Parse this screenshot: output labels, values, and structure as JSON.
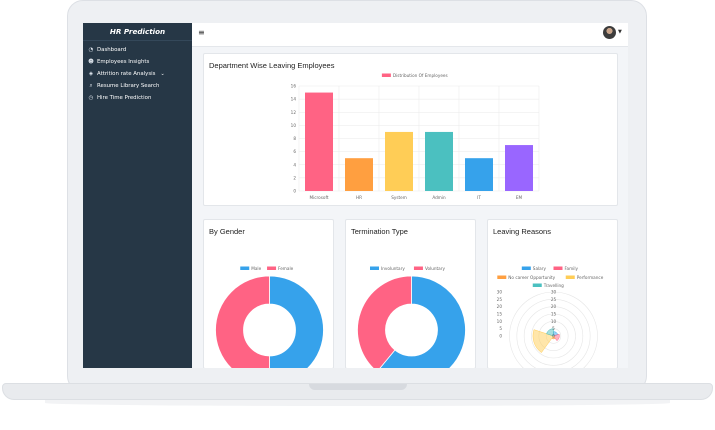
{
  "app": {
    "brand": "HR Prediction"
  },
  "sidebar": {
    "items": [
      {
        "label": "Dashboard",
        "icon": "dashboard-icon"
      },
      {
        "label": "Employees Insights",
        "icon": "users-icon"
      },
      {
        "label": "Attrition rate Analysis",
        "icon": "gem-icon"
      },
      {
        "label": "Resume Library Search",
        "icon": "search-icon"
      },
      {
        "label": "Hire Time Prediction",
        "icon": "clock-icon"
      }
    ]
  },
  "colors": {
    "sidebar": "#263746",
    "pink": "#ff6384",
    "orange": "#ff9f40",
    "yellow": "#ffcd56",
    "teal": "#4bc0c0",
    "blue": "#36a2eb",
    "purple": "#9966ff"
  },
  "cards": {
    "department": {
      "title": "Department Wise Leaving Employees"
    },
    "gender": {
      "title": "By Gender"
    },
    "termination": {
      "title": "Termination Type"
    },
    "reasons": {
      "title": "Leaving Reasons"
    }
  },
  "chart_data": [
    {
      "type": "bar",
      "title": "",
      "categories": [
        "Microsoft",
        "HR",
        "System",
        "Admin",
        "IT",
        "EM"
      ],
      "series": [
        {
          "name": "Distribution Of Employees",
          "values": [
            15,
            5,
            9,
            9,
            5,
            7
          ]
        }
      ],
      "colors": [
        "#ff6384",
        "#ff9f40",
        "#ffcd56",
        "#4bc0c0",
        "#36a2eb",
        "#9966ff"
      ],
      "ylim": [
        0,
        16
      ],
      "yticks": [
        0,
        2,
        4,
        6,
        8,
        10,
        12,
        14,
        16
      ],
      "grid": true,
      "legend": "top"
    },
    {
      "type": "pie",
      "labels": [
        "Male",
        "Female"
      ],
      "values": [
        50,
        50
      ],
      "colors": [
        "#36a2eb",
        "#ff6384"
      ],
      "legend": "top"
    },
    {
      "type": "pie",
      "labels": [
        "Involuntary",
        "Voluntary"
      ],
      "values": [
        61,
        39
      ],
      "colors": [
        "#36a2eb",
        "#ff6384"
      ],
      "legend": "top"
    },
    {
      "type": "polar",
      "labels": [
        "Salary",
        "Family",
        "No career Opportunity",
        "Performance",
        "Travelling"
      ],
      "values": [
        3,
        4,
        2,
        14,
        5
      ],
      "colors": [
        "#36a2eb",
        "#ff6384",
        "#ff9f40",
        "#ffcd56",
        "#4bc0c0"
      ],
      "rlim": [
        0,
        30
      ],
      "rticks": [
        0,
        5,
        10,
        15,
        20,
        25,
        30
      ],
      "legend": "top"
    }
  ]
}
